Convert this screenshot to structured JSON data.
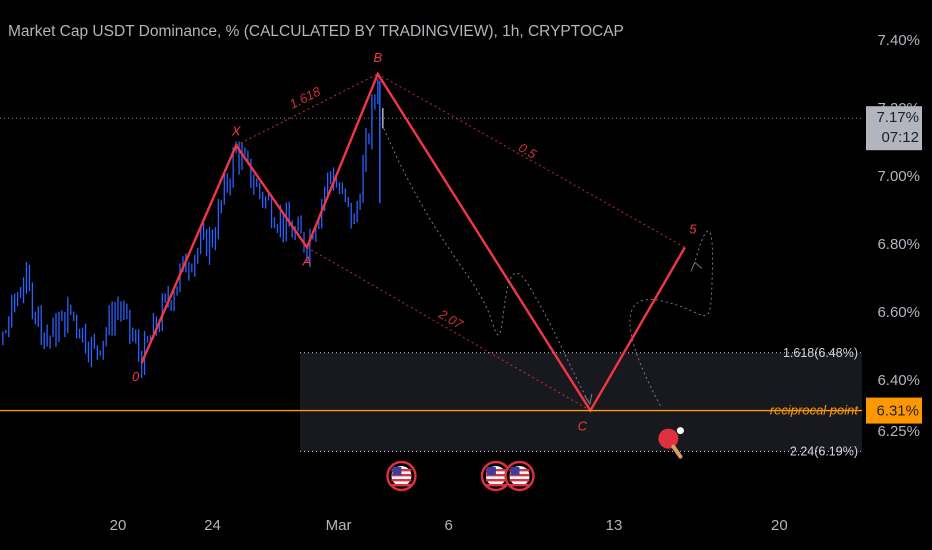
{
  "title": "Market Cap USDT Dominance, % (CALCULATED BY TRADINGVIEW), 1h, CRYPTOCAP",
  "colors": {
    "pattern": "#f23645",
    "candles": "#2962ff",
    "reciprocal": "#ff9800",
    "zone": "#2a2e39",
    "badge_current": "#b2b5be"
  },
  "chart_data": {
    "type": "line",
    "y_unit": "%",
    "ylim": [
      6.14,
      7.46
    ],
    "y_ticks": [
      "7.40%",
      "7.00%",
      "6.80%",
      "6.60%",
      "6.40%",
      "6.25%"
    ],
    "y_tick_values": [
      7.4,
      7.0,
      6.8,
      6.6,
      6.4,
      6.25
    ],
    "x_ticks": [
      "20",
      "24",
      "Mar",
      "6",
      "13",
      "20"
    ],
    "current_price": "7.17%",
    "countdown": "07:12",
    "reciprocal_badge": "6.31%",
    "pattern": {
      "points": [
        {
          "label": "0",
          "date": "2023-02-21",
          "value": 6.45
        },
        {
          "label": "X",
          "date": "2023-02-25",
          "value": 7.09
        },
        {
          "label": "A",
          "date": "2023-02-28",
          "value": 6.79
        },
        {
          "label": "B",
          "date": "2023-03-03",
          "value": 7.3
        },
        {
          "label": "C",
          "date": "2023-03-12",
          "value": 6.31
        },
        {
          "label": "5",
          "date": "2023-03-16",
          "value": 6.79
        }
      ],
      "ratios": [
        {
          "text": "1.618",
          "from": "X",
          "to": "B"
        },
        {
          "text": "0.5",
          "from": "B",
          "to": "5"
        },
        {
          "text": "2.07",
          "from": "A",
          "to": "C"
        }
      ]
    },
    "zone": {
      "upper_label": "1.618(6.48%)",
      "upper_value": 6.48,
      "lower_label": "2.24(6.19%)",
      "lower_value": 6.19
    },
    "reciprocal_line": {
      "label": "reciprocal point",
      "value": 6.31
    },
    "events": [
      {
        "date": "2023-03-04",
        "flag": "US"
      },
      {
        "date": "2023-03-08",
        "flag": "US"
      },
      {
        "date": "2023-03-09",
        "flag": "US"
      }
    ],
    "projection_paths": 2,
    "price_series": {
      "start_date": "2023-02-13",
      "end_date": "2023-03-03",
      "anchors": [
        [
          "2023-02-13",
          7.05
        ],
        [
          "2023-02-14",
          6.75
        ],
        [
          "2023-02-15",
          6.5
        ],
        [
          "2023-02-16",
          6.7
        ],
        [
          "2023-02-17",
          6.52
        ],
        [
          "2023-02-18",
          6.6
        ],
        [
          "2023-02-19",
          6.48
        ],
        [
          "2023-02-20",
          6.62
        ],
        [
          "2023-02-21",
          6.46
        ],
        [
          "2023-02-22",
          6.62
        ],
        [
          "2023-02-23",
          6.76
        ],
        [
          "2023-02-24",
          6.82
        ],
        [
          "2023-02-25",
          7.08
        ],
        [
          "2023-02-26",
          6.95
        ],
        [
          "2023-02-27",
          6.86
        ],
        [
          "2023-02-28",
          6.8
        ],
        [
          "2023-03-01",
          7.01
        ],
        [
          "2023-03-02",
          6.86
        ],
        [
          "2023-03-03",
          7.29
        ]
      ]
    }
  }
}
